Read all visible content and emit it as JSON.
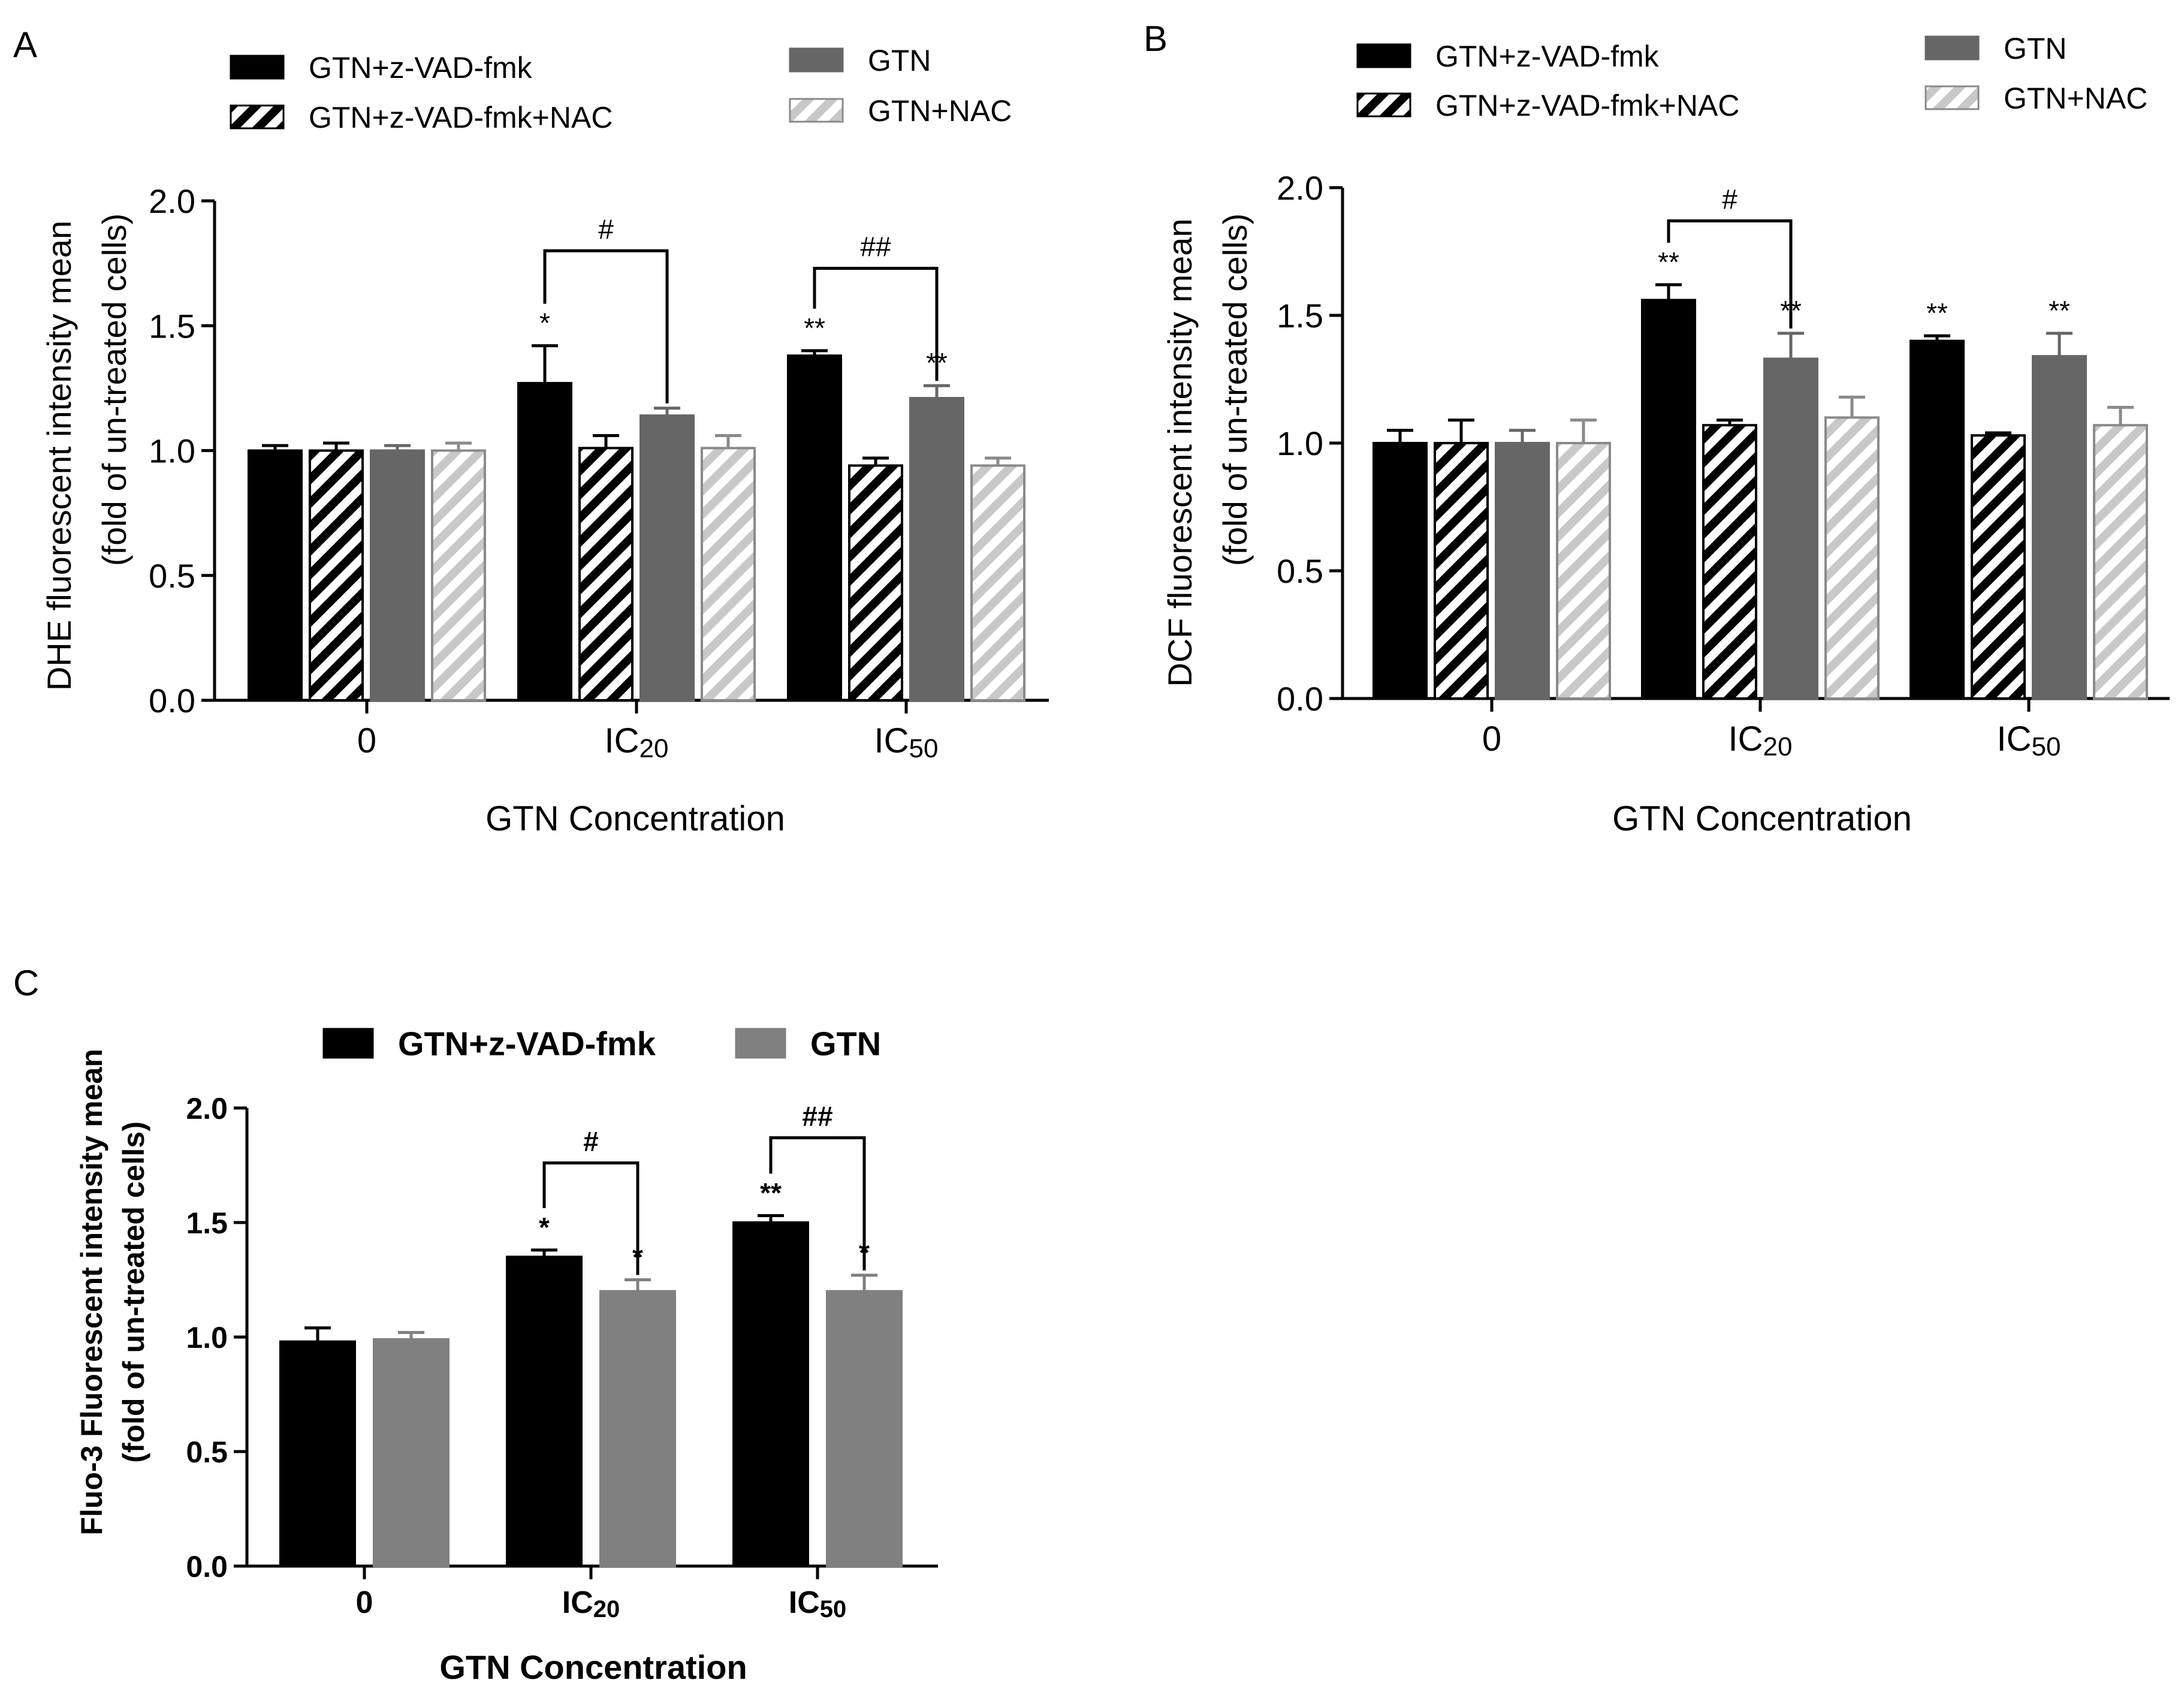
{
  "colors": {
    "black": "#000000",
    "dark_gray": "#666666",
    "light_gray": "#c8c8c8",
    "gtn_c": "#808080",
    "white": "#ffffff"
  },
  "chart_data": [
    {
      "type": "bar",
      "panel_label": "A",
      "xlabel": "GTN Concentration",
      "ylabel": "DHE  fluorescent intensity mean",
      "ylabel2": "(fold of un-treated cells)",
      "ylim": [
        0,
        2.0
      ],
      "yticks": [
        "0.0",
        "0.5",
        "1.0",
        "1.5",
        "2.0"
      ],
      "categories": [
        {
          "main": "0",
          "sub": ""
        },
        {
          "main": "IC",
          "sub": "20"
        },
        {
          "main": "IC",
          "sub": "50"
        }
      ],
      "series": [
        {
          "name": "GTN+z-VAD-fmk",
          "style": "solid-black",
          "values": [
            1.0,
            1.27,
            1.38
          ],
          "errors": [
            0.02,
            0.15,
            0.02
          ]
        },
        {
          "name": "GTN+z-VAD-fmk+NAC",
          "style": "hatch-black",
          "values": [
            1.0,
            1.01,
            0.94
          ],
          "errors": [
            0.03,
            0.05,
            0.03
          ]
        },
        {
          "name": "GTN",
          "style": "solid-darkgray",
          "values": [
            1.0,
            1.14,
            1.21
          ],
          "errors": [
            0.02,
            0.03,
            0.05
          ]
        },
        {
          "name": "GTN+NAC",
          "style": "hatch-lightgray",
          "values": [
            1.0,
            1.01,
            0.94
          ],
          "errors": [
            0.03,
            0.05,
            0.03
          ]
        }
      ],
      "annotations": [
        {
          "category": 1,
          "series": 0,
          "text": "*"
        },
        {
          "category": 2,
          "series": 0,
          "text": "**"
        },
        {
          "category": 2,
          "series": 2,
          "text": "**"
        }
      ],
      "brackets": [
        {
          "category": 1,
          "from_series": 0,
          "to_series": 2,
          "level": 1.8,
          "text": "#"
        },
        {
          "category": 2,
          "from_series": 0,
          "to_series": 2,
          "level": 1.73,
          "text": "##"
        }
      ],
      "legend": "top"
    },
    {
      "type": "bar",
      "panel_label": "B",
      "xlabel": "GTN Concentration",
      "ylabel": "DCF  fluorescent intensity mean",
      "ylabel2": "(fold of un-treated cells)",
      "ylim": [
        0,
        2.0
      ],
      "yticks": [
        "0.0",
        "0.5",
        "1.0",
        "1.5",
        "2.0"
      ],
      "categories": [
        {
          "main": "0",
          "sub": ""
        },
        {
          "main": "IC",
          "sub": "20"
        },
        {
          "main": "IC",
          "sub": "50"
        }
      ],
      "series": [
        {
          "name": "GTN+z-VAD-fmk",
          "style": "solid-black",
          "values": [
            1.0,
            1.56,
            1.4
          ],
          "errors": [
            0.05,
            0.06,
            0.02
          ]
        },
        {
          "name": "GTN+z-VAD-fmk+NAC",
          "style": "hatch-black",
          "values": [
            1.0,
            1.07,
            1.03
          ],
          "errors": [
            0.09,
            0.02,
            0.01
          ]
        },
        {
          "name": "GTN",
          "style": "solid-darkgray",
          "values": [
            1.0,
            1.33,
            1.34
          ],
          "errors": [
            0.05,
            0.1,
            0.09
          ]
        },
        {
          "name": "GTN+NAC",
          "style": "hatch-lightgray",
          "values": [
            1.0,
            1.1,
            1.07
          ],
          "errors": [
            0.09,
            0.08,
            0.07
          ]
        }
      ],
      "annotations": [
        {
          "category": 1,
          "series": 0,
          "text": "**"
        },
        {
          "category": 1,
          "series": 2,
          "text": "**"
        },
        {
          "category": 2,
          "series": 0,
          "text": "**"
        },
        {
          "category": 2,
          "series": 2,
          "text": "**"
        }
      ],
      "brackets": [
        {
          "category": 1,
          "from_series": 0,
          "to_series": 2,
          "level": 1.87,
          "text": "#"
        }
      ],
      "legend": "top"
    },
    {
      "type": "bar",
      "panel_label": "C",
      "xlabel": "GTN Concentration",
      "ylabel": "Fluo-3 Fluorescent intensity mean",
      "ylabel2": "(fold of un-treated cells)",
      "ylim": [
        0,
        2.0
      ],
      "yticks": [
        "0.0",
        "0.5",
        "1.0",
        "1.5",
        "2.0"
      ],
      "categories": [
        {
          "main": "0",
          "sub": ""
        },
        {
          "main": "IC",
          "sub": "20"
        },
        {
          "main": "IC",
          "sub": "50"
        }
      ],
      "series": [
        {
          "name": "GTN+z-VAD-fmk",
          "style": "solid-black",
          "values": [
            0.98,
            1.35,
            1.5
          ],
          "errors": [
            0.06,
            0.03,
            0.03
          ]
        },
        {
          "name": "GTN",
          "style": "solid-gray",
          "values": [
            0.99,
            1.2,
            1.2
          ],
          "errors": [
            0.03,
            0.05,
            0.07
          ]
        }
      ],
      "annotations": [
        {
          "category": 1,
          "series": 0,
          "text": "*"
        },
        {
          "category": 1,
          "series": 1,
          "text": "*"
        },
        {
          "category": 2,
          "series": 0,
          "text": "**"
        },
        {
          "category": 2,
          "series": 1,
          "text": "*"
        }
      ],
      "brackets": [
        {
          "category": 1,
          "from_series": 0,
          "to_series": 1,
          "level": 1.76,
          "text": "#"
        },
        {
          "category": 2,
          "from_series": 0,
          "to_series": 1,
          "level": 1.87,
          "text": "##"
        }
      ],
      "legend": "top"
    }
  ]
}
